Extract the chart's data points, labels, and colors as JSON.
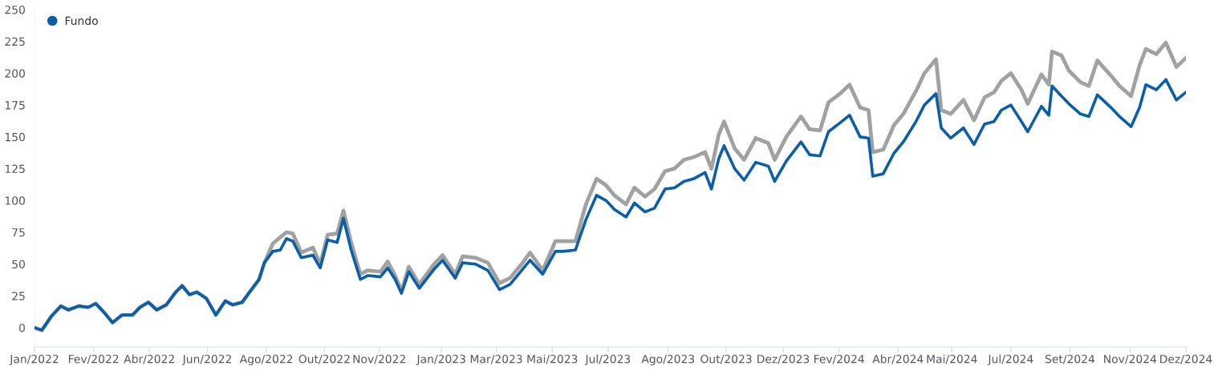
{
  "chart_data": {
    "type": "line",
    "x": [
      "2022-01-03",
      "2022-01-10",
      "2022-01-19",
      "2022-01-28",
      "2022-02-04",
      "2022-02-14",
      "2022-02-23",
      "2022-03-02",
      "2022-03-10",
      "2022-03-18",
      "2022-03-27",
      "2022-04-06",
      "2022-04-13",
      "2022-04-21",
      "2022-04-29",
      "2022-05-08",
      "2022-05-17",
      "2022-05-23",
      "2022-05-30",
      "2022-06-06",
      "2022-06-15",
      "2022-06-24",
      "2022-07-03",
      "2022-07-10",
      "2022-07-19",
      "2022-07-26",
      "2022-08-04",
      "2022-08-09",
      "2022-08-17",
      "2022-08-24",
      "2022-08-30",
      "2022-09-05",
      "2022-09-13",
      "2022-09-24",
      "2022-10-01",
      "2022-10-08",
      "2022-10-17",
      "2022-10-23",
      "2022-10-30",
      "2022-11-08",
      "2022-11-15",
      "2022-11-27",
      "2022-12-04",
      "2022-12-11",
      "2022-12-17",
      "2022-12-24",
      "2023-01-03",
      "2023-01-17",
      "2023-01-25",
      "2023-02-06",
      "2023-02-13",
      "2023-02-25",
      "2023-03-09",
      "2023-03-20",
      "2023-03-30",
      "2023-04-10",
      "2023-04-18",
      "2023-04-30",
      "2023-05-12",
      "2023-05-19",
      "2023-05-31",
      "2023-06-10",
      "2023-06-20",
      "2023-06-29",
      "2023-07-07",
      "2023-07-18",
      "2023-07-26",
      "2023-08-05",
      "2023-08-14",
      "2023-08-24",
      "2023-09-02",
      "2023-09-11",
      "2023-09-20",
      "2023-10-01",
      "2023-10-07",
      "2023-10-14",
      "2023-10-19",
      "2023-10-29",
      "2023-11-07",
      "2023-11-18",
      "2023-11-30",
      "2023-12-06",
      "2023-12-17",
      "2023-12-31",
      "2024-01-08",
      "2024-01-18",
      "2024-01-26",
      "2024-02-06",
      "2024-02-15",
      "2024-02-25",
      "2024-03-04",
      "2024-03-08",
      "2024-03-18",
      "2024-03-28",
      "2024-04-06",
      "2024-04-18",
      "2024-04-26",
      "2024-05-07",
      "2024-05-12",
      "2024-05-21",
      "2024-06-02",
      "2024-06-12",
      "2024-06-22",
      "2024-07-01",
      "2024-07-08",
      "2024-07-17",
      "2024-07-27",
      "2024-08-02",
      "2024-08-15",
      "2024-08-22",
      "2024-08-25",
      "2024-09-03",
      "2024-09-10",
      "2024-09-21",
      "2024-09-29",
      "2024-10-07",
      "2024-10-20",
      "2024-10-28",
      "2024-11-08",
      "2024-11-16",
      "2024-11-22",
      "2024-12-02",
      "2024-12-11",
      "2024-12-21",
      "2024-12-30"
    ],
    "xlim": [
      "2022-01-03",
      "2024-12-30"
    ],
    "xticks": [
      {
        "value": "2022-01-03",
        "label": "Jan/2022"
      },
      {
        "value": "2022-02-28",
        "label": "Fev/2022"
      },
      {
        "value": "2022-04-22",
        "label": "Abr/2022"
      },
      {
        "value": "2022-06-16",
        "label": "Jun/2022"
      },
      {
        "value": "2022-08-11",
        "label": "Ago/2022"
      },
      {
        "value": "2022-10-05",
        "label": "Out/2022"
      },
      {
        "value": "2022-11-26",
        "label": "Nov/2022"
      },
      {
        "value": "2023-01-24",
        "label": "Jan/2023"
      },
      {
        "value": "2023-03-17",
        "label": "Mar/2023"
      },
      {
        "value": "2023-05-09",
        "label": "Mai/2023"
      },
      {
        "value": "2023-07-01",
        "label": "Jul/2023"
      },
      {
        "value": "2023-08-27",
        "label": "Ago/2023"
      },
      {
        "value": "2023-10-21",
        "label": "Out/2023"
      },
      {
        "value": "2023-12-14",
        "label": "Dez/2023"
      },
      {
        "value": "2024-02-05",
        "label": "Fev/2024"
      },
      {
        "value": "2024-04-01",
        "label": "Abr/2024"
      },
      {
        "value": "2024-05-22",
        "label": "Mai/2024"
      },
      {
        "value": "2024-07-17",
        "label": "Jul/2024"
      },
      {
        "value": "2024-09-11",
        "label": "Set/2024"
      },
      {
        "value": "2024-11-07",
        "label": "Nov/2024"
      },
      {
        "value": "2024-12-30",
        "label": "Dez/2024"
      }
    ],
    "ylim": [
      -15,
      250
    ],
    "yticks": [
      0,
      25,
      50,
      75,
      100,
      125,
      150,
      175,
      200,
      225,
      250
    ],
    "legend": "top left",
    "marker": "none",
    "line_style": "solid",
    "series": [
      {
        "color": "#a0a2a1",
        "values": [
          0,
          -2,
          9,
          17,
          14,
          17,
          16,
          19,
          12,
          4,
          10,
          10,
          16,
          20,
          14,
          18,
          28,
          33,
          26,
          28,
          23,
          10,
          21,
          18,
          20,
          28,
          38,
          51,
          66,
          71,
          75,
          74,
          59,
          63,
          50,
          73,
          74,
          92,
          68,
          42,
          45,
          44,
          52,
          41,
          29,
          48,
          34,
          50,
          57,
          42,
          56,
          55,
          51,
          35,
          39,
          50,
          59,
          45,
          68,
          68,
          68,
          97,
          117,
          112,
          104,
          97,
          110,
          103,
          109,
          123,
          125,
          132,
          134,
          138,
          125,
          152,
          162,
          141,
          132,
          149,
          145,
          132,
          150,
          166,
          156,
          155,
          177,
          184,
          191,
          173,
          171,
          138,
          140,
          159,
          168,
          186,
          200,
          211,
          171,
          168,
          179,
          163,
          181,
          185,
          194,
          200,
          187,
          176,
          199,
          191,
          217,
          214,
          202,
          193,
          190,
          210,
          198,
          190,
          182,
          206,
          219,
          215,
          224,
          205,
          212
        ]
      },
      {
        "name": "Fundo",
        "color": "#0b5ea8",
        "values": [
          0,
          -2,
          9,
          17,
          14,
          17,
          16,
          19,
          12,
          4,
          10,
          10,
          16,
          20,
          14,
          18,
          28,
          33,
          26,
          28,
          23,
          10,
          21,
          18,
          20,
          28,
          38,
          51,
          60,
          61,
          70,
          68,
          55,
          57,
          47,
          69,
          67,
          86,
          62,
          38,
          41,
          40,
          47,
          38,
          27,
          44,
          31,
          46,
          53,
          39,
          51,
          50,
          45,
          30,
          34,
          45,
          53,
          42,
          60,
          60,
          61,
          85,
          104,
          100,
          93,
          87,
          98,
          91,
          94,
          109,
          110,
          115,
          117,
          122,
          109,
          133,
          143,
          125,
          116,
          130,
          127,
          115,
          131,
          146,
          136,
          135,
          154,
          161,
          167,
          150,
          149,
          119,
          121,
          137,
          146,
          162,
          175,
          184,
          157,
          149,
          157,
          144,
          160,
          162,
          171,
          175,
          162,
          154,
          174,
          167,
          190,
          182,
          176,
          168,
          166,
          183,
          173,
          166,
          158,
          173,
          191,
          187,
          195,
          179,
          185
        ]
      }
    ]
  }
}
